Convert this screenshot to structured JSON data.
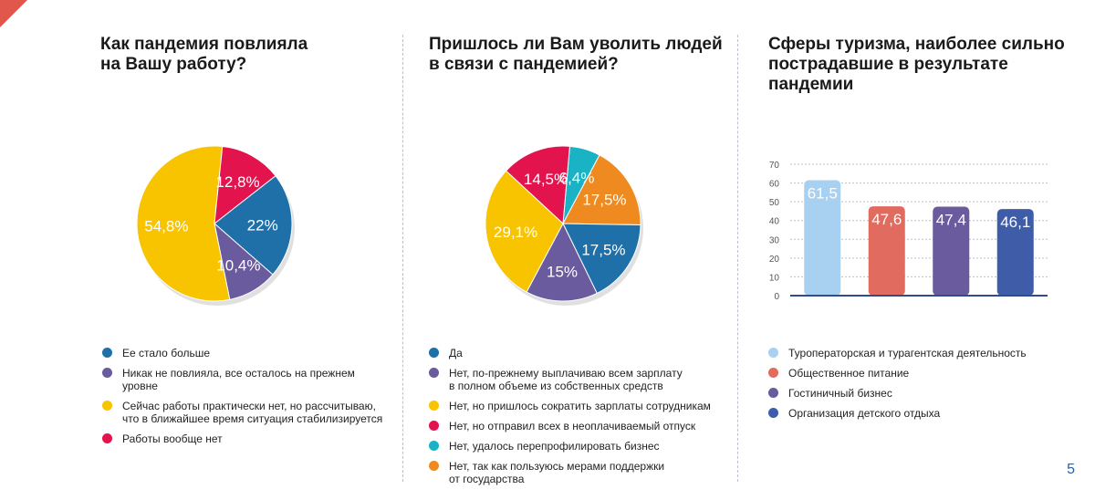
{
  "page_number": "5",
  "panels": [
    {
      "title_lines": [
        "Как пандемия повлияла",
        "на Вашу работу?"
      ]
    },
    {
      "title_lines": [
        "Пришлось ли Вам уволить людей",
        "в связи с пандемией?"
      ]
    },
    {
      "title_lines": [
        "Сферы туризма, наиболее сильно",
        "пострадавшие в результате",
        "пандемии"
      ]
    }
  ],
  "chart_data": [
    {
      "type": "pie",
      "title": "Как пандемия повлияла на Вашу работу?",
      "slices": [
        {
          "label_lines": [
            "Ее стало больше"
          ],
          "value": 22,
          "value_label": "22%",
          "color": "#1f6fa8"
        },
        {
          "label_lines": [
            "Никак не повлияла, все осталось на прежнем",
            "уровне"
          ],
          "value": 10.4,
          "value_label": "10,4%",
          "color": "#6a5a9e"
        },
        {
          "label_lines": [
            "Сейчас работы практически нет, но рассчитываю,",
            "что в ближайшее время ситуация стабилизируется"
          ],
          "value": 54.8,
          "value_label": "54,8%",
          "color": "#f8c400"
        },
        {
          "label_lines": [
            "Работы вообще нет"
          ],
          "value": 12.8,
          "value_label": "12,8%",
          "color": "#e3134e"
        }
      ]
    },
    {
      "type": "pie",
      "title": "Пришлось ли Вам уволить людей в связи с пандемией?",
      "slices": [
        {
          "label_lines": [
            "Да"
          ],
          "value": 17.5,
          "value_label": "17,5%",
          "color": "#1f6fa8"
        },
        {
          "label_lines": [
            "Нет, по-прежнему выплачиваю всем зарплату",
            "в полном объеме из собственных средств"
          ],
          "value": 15,
          "value_label": "15%",
          "color": "#6a5a9e"
        },
        {
          "label_lines": [
            "Нет, но пришлось сократить зарплаты сотрудникам"
          ],
          "value": 29.1,
          "value_label": "29,1%",
          "color": "#f8c400"
        },
        {
          "label_lines": [
            "Нет, но отправил всех в неоплачиваемый отпуск"
          ],
          "value": 14.5,
          "value_label": "14,5%",
          "color": "#e3134e"
        },
        {
          "label_lines": [
            "Нет, удалось перепрофилировать бизнес"
          ],
          "value": 6.4,
          "value_label": "6,4%",
          "color": "#1ab3c6"
        },
        {
          "label_lines": [
            "Нет, так как пользуюсь мерами поддержки",
            "от государства"
          ],
          "value": 17.5,
          "value_label": "17,5%",
          "color": "#ef8a21"
        }
      ]
    },
    {
      "type": "bar",
      "title": "Сферы туризма, наиболее сильно пострадавшие в результате пандемии",
      "ylim": [
        0,
        70
      ],
      "yticks": [
        "0",
        "10",
        "20",
        "30",
        "40",
        "50",
        "60",
        "70"
      ],
      "grid": true,
      "bars": [
        {
          "label_lines": [
            "Туроператорская и турагентская деятельность"
          ],
          "value": 61.5,
          "value_label": "61,5",
          "color": "#a8d0f0"
        },
        {
          "label_lines": [
            "Общественное питание"
          ],
          "value": 47.6,
          "value_label": "47,6",
          "color": "#e06b5e"
        },
        {
          "label_lines": [
            "Гостиничный бизнес"
          ],
          "value": 47.4,
          "value_label": "47,4",
          "color": "#6a5a9e"
        },
        {
          "label_lines": [
            "Организация детского отдыха"
          ],
          "value": 46.1,
          "value_label": "46,1",
          "color": "#3f5ca8"
        }
      ]
    }
  ]
}
